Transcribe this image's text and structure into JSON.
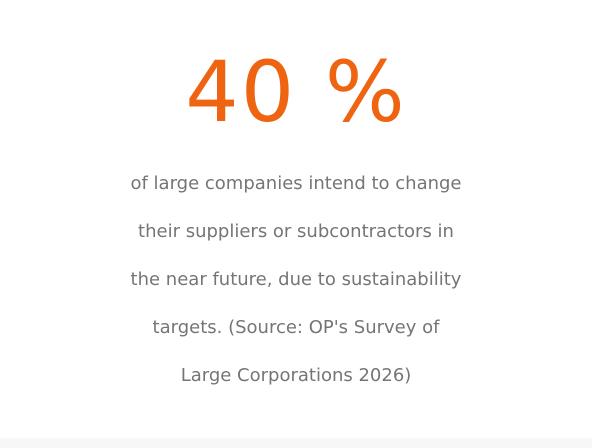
{
  "stat": {
    "value": "40 %",
    "description_lines": [
      "of large companies intend to change",
      "their suppliers or subcontractors in",
      "the near future, due to sustainability",
      "targets. (Source: OP's Survey of",
      "Large Corporations 2026)"
    ]
  },
  "colors": {
    "accent": "#ee6411",
    "text": "#757575",
    "background": "#ffffff"
  }
}
